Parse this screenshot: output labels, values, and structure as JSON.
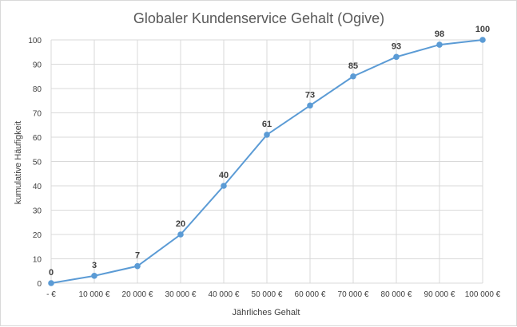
{
  "chart_data": {
    "type": "line",
    "title": "Globaler Kundenservice Gehalt (Ogive)",
    "xlabel": "Jährliches Gehalt",
    "ylabel": "kumulative Häufigkeit",
    "categories": [
      "-  €",
      "10 000 €",
      "20 000 €",
      "30 000 €",
      "40 000 €",
      "50 000 €",
      "60 000 €",
      "70 000 €",
      "80 000 €",
      "90 000 €",
      "100 000 €"
    ],
    "x": [
      0,
      10000,
      20000,
      30000,
      40000,
      50000,
      60000,
      70000,
      80000,
      90000,
      100000
    ],
    "values": [
      0,
      3,
      7,
      20,
      40,
      61,
      73,
      85,
      93,
      98,
      100
    ],
    "data_labels": [
      "0",
      "3",
      "7",
      "20",
      "40",
      "61",
      "73",
      "85",
      "93",
      "98",
      "100"
    ],
    "y_ticks": [
      "0",
      "10",
      "20",
      "30",
      "40",
      "50",
      "60",
      "70",
      "80",
      "90",
      "100"
    ],
    "ylim": [
      0,
      100
    ],
    "xlim": [
      0,
      100000
    ],
    "grid": true,
    "legend": "none",
    "colors": {
      "line": "#5b9bd5",
      "grid": "#d9d9d9",
      "text": "#404040"
    }
  }
}
